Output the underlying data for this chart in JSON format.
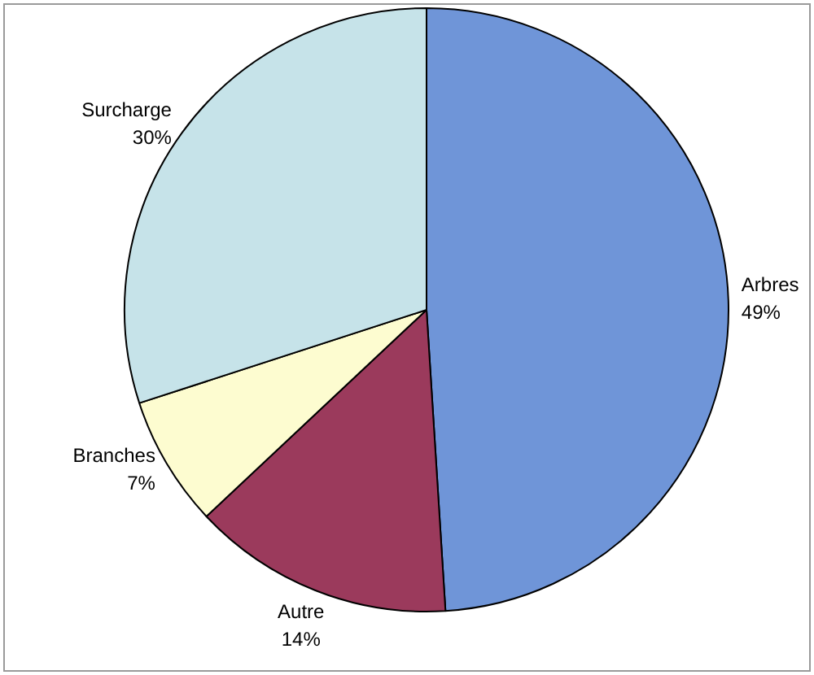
{
  "chart_data": {
    "type": "pie",
    "categories": [
      "Arbres",
      "Autre",
      "Branches",
      "Surcharge"
    ],
    "values": [
      49,
      14,
      7,
      30
    ],
    "value_labels": [
      "49%",
      "14%",
      "7%",
      "30%"
    ],
    "colors": [
      "#6f95d8",
      "#9b3a5c",
      "#fdfcd0",
      "#c6e3e9"
    ],
    "legend": false
  }
}
